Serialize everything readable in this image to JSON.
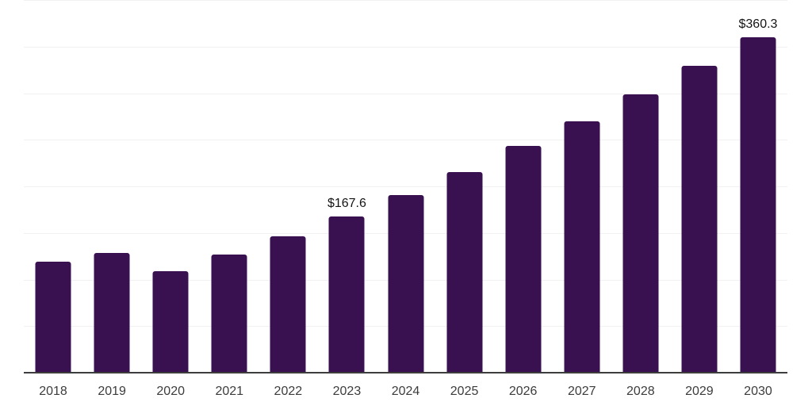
{
  "chart_data": {
    "type": "bar",
    "title": "",
    "xlabel": "",
    "ylabel": "",
    "categories": [
      "2018",
      "2019",
      "2020",
      "2021",
      "2022",
      "2023",
      "2024",
      "2025",
      "2026",
      "2027",
      "2028",
      "2029",
      "2030"
    ],
    "values": [
      118.8,
      128.1,
      109.0,
      126.4,
      146.7,
      167.6,
      190.8,
      215.7,
      243.6,
      269.8,
      298.9,
      329.6,
      360.3
    ],
    "value_labels": {
      "2023": "$167.6",
      "2030": "$360.3"
    },
    "ylim": [
      0,
      400
    ],
    "grid_step": 50,
    "grid": true,
    "legend": false,
    "colors": {
      "bar": "#391150",
      "gridline": "#f1f1f1",
      "axis_line": "#3d3d3d",
      "x_label": "#3c3c3c",
      "value_label": "#141414",
      "background": "#ffffff"
    }
  }
}
